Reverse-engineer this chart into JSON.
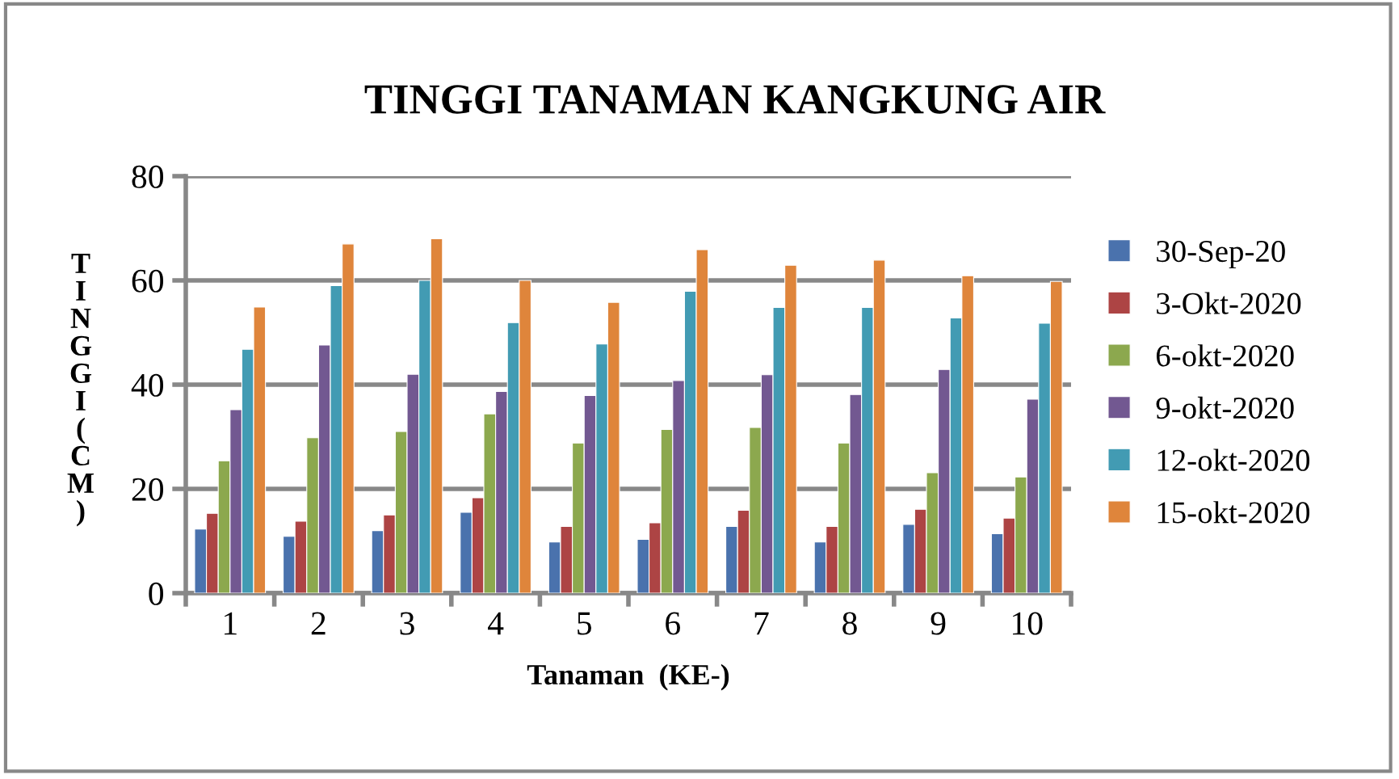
{
  "chart_data": {
    "type": "bar",
    "title": "TINGGI TANAMAN KANGKUNG AIR",
    "xlabel": "Tanaman  (KE-)",
    "ylabel": "TINGGI (CM)",
    "categories": [
      "1",
      "2",
      "3",
      "4",
      "5",
      "6",
      "7",
      "8",
      "9",
      "10"
    ],
    "series": [
      {
        "name": "30-Sep-20",
        "color": "#4a72ad",
        "values": [
          12.3,
          10.9,
          12,
          15.5,
          9.8,
          10.3,
          12.8,
          9.8,
          13.2,
          11.4
        ]
      },
      {
        "name": "3-Okt-2020",
        "color": "#ad4444",
        "values": [
          15.3,
          13.8,
          15,
          18.3,
          12.8,
          13.5,
          15.9,
          12.8,
          16.1,
          14.4
        ]
      },
      {
        "name": "6-okt-2020",
        "color": "#8ca84e",
        "values": [
          25.4,
          29.8,
          31,
          34.4,
          28.8,
          31.4,
          31.8,
          28.8,
          23.1,
          22.3
        ]
      },
      {
        "name": "9-okt-2020",
        "color": "#725891",
        "values": [
          35.2,
          47.6,
          42,
          38.7,
          37.9,
          40.8,
          41.9,
          38.1,
          42.9,
          37.2
        ]
      },
      {
        "name": "12-okt-2020",
        "color": "#429bb3",
        "values": [
          46.8,
          59,
          60,
          51.9,
          47.8,
          57.9,
          54.8,
          54.8,
          52.8,
          51.8
        ]
      },
      {
        "name": "15-okt-2020",
        "color": "#df853b",
        "values": [
          54.9,
          67,
          68,
          60,
          55.8,
          65.9,
          62.9,
          63.9,
          60.9,
          59.8
        ]
      }
    ],
    "ylim": [
      0,
      80
    ],
    "yticks": [
      0,
      20,
      40,
      60,
      80
    ],
    "grid": "y",
    "legend": "right"
  }
}
